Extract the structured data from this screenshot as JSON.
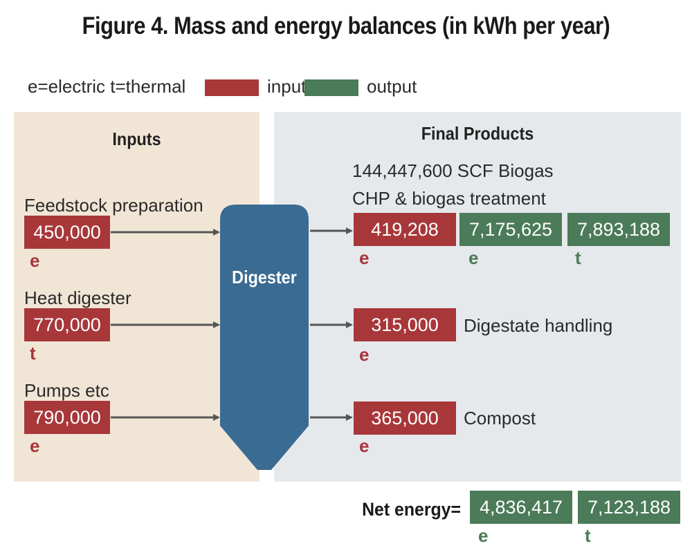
{
  "title": "Figure 4. Mass and energy balances (in kWh per year)",
  "legend": {
    "key_text": "e=electric  t=thermal",
    "input_label": "input",
    "output_label": "output",
    "input_color": "#a8373a",
    "output_color": "#4b7b58"
  },
  "inputs": {
    "heading": "Inputs",
    "items": [
      {
        "label": "Feedstock preparation",
        "value": "450,000",
        "type": "e"
      },
      {
        "label": "Heat digester",
        "value": "770,000",
        "type": "t"
      },
      {
        "label": "Pumps etc",
        "value": "790,000",
        "type": "e"
      }
    ]
  },
  "digester": {
    "label": "Digester",
    "color": "#3a6b93"
  },
  "final_products": {
    "heading": "Final Products",
    "biogas_label": "144,447,600 SCF Biogas",
    "chp_label": "CHP & biogas treatment",
    "chp_input": {
      "value": "419,208",
      "type": "e"
    },
    "chp_output_e": {
      "value": "7,175,625",
      "type": "e"
    },
    "chp_output_t": {
      "value": "7,893,188",
      "type": "t"
    },
    "digestate": {
      "value": "315,000",
      "type": "e",
      "label": "Digestate handling"
    },
    "compost": {
      "value": "365,000",
      "type": "e",
      "label": "Compost"
    }
  },
  "net_energy": {
    "label": "Net energy=",
    "electric": {
      "value": "4,836,417",
      "type": "e"
    },
    "thermal": {
      "value": "7,123,188",
      "type": "t"
    }
  }
}
